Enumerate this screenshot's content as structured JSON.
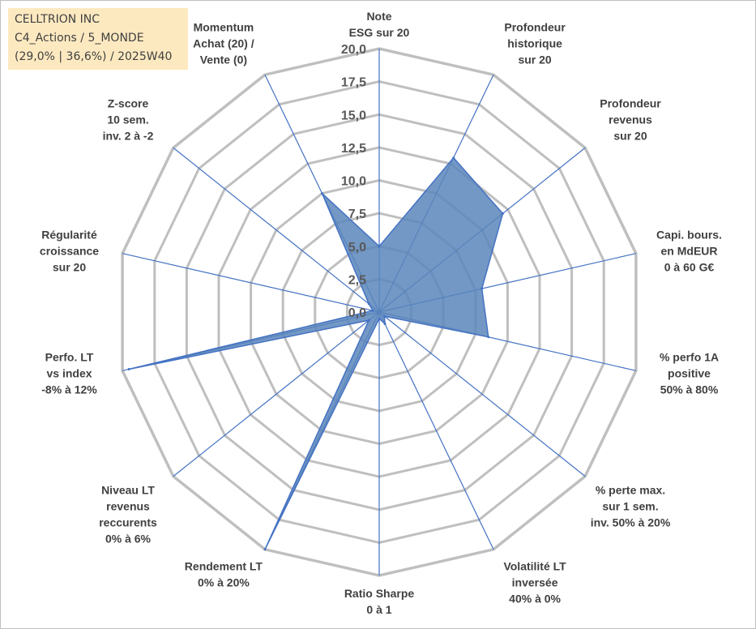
{
  "info_box": {
    "line1": "CELLTRION INC",
    "line2": "C4_Actions / 5_MONDE",
    "line3": "(29,0% | 36,6%) / 2025W40"
  },
  "colors": {
    "fill": "#5b86bb",
    "axis": "#4472c4",
    "grid": "#bfbfbf",
    "label": "#404040"
  },
  "chart_data": {
    "type": "radar",
    "title": "",
    "rlim": [
      0,
      20
    ],
    "ticks": [
      "0,0",
      "2,5",
      "5,0",
      "7,5",
      "10,0",
      "12,5",
      "15,0",
      "17,5",
      "20,0"
    ],
    "axes": [
      {
        "label": [
          "Note",
          "ESG sur 20"
        ],
        "value": 5.0
      },
      {
        "label": [
          "Profondeur",
          "historique",
          "sur 20"
        ],
        "value": 13.0
      },
      {
        "label": [
          "Profondeur",
          "revenus",
          "sur 20"
        ],
        "value": 12.0
      },
      {
        "label": [
          "Capi. bours.",
          "en MdEUR",
          "0 à 60 G€"
        ],
        "value": 8.0
      },
      {
        "label": [
          "% perfo 1A",
          "positive",
          "50% à 80%"
        ],
        "value": 8.5
      },
      {
        "label": [
          "% perte max.",
          "sur 1 sem.",
          "inv. 50% à 20%"
        ],
        "value": 0.5
      },
      {
        "label": [
          "Volatilité LT",
          "inversée",
          "40% à 0%"
        ],
        "value": 1.0
      },
      {
        "label": [
          "Ratio Sharpe",
          "0 à 1"
        ],
        "value": 0.5
      },
      {
        "label": [
          "Rendement LT",
          "0% à 20%"
        ],
        "value": 20.0
      },
      {
        "label": [
          "Niveau LT",
          "revenus",
          "reccurents",
          "0% à 6%"
        ],
        "value": 1.0
      },
      {
        "label": [
          "Perfo. LT",
          "vs index",
          "-8% à 12%"
        ],
        "value": 19.5
      },
      {
        "label": [
          "Régularité",
          "croissance",
          "sur 20"
        ],
        "value": 0.5
      },
      {
        "label": [
          "Z-score",
          "10 sem.",
          "inv. 2 à -2"
        ],
        "value": 1.0
      },
      {
        "label": [
          "Momentum",
          "Achat (20) /",
          "Vente (0)"
        ],
        "value": 10.0
      }
    ],
    "series": [
      {
        "values": [
          5.0,
          13.0,
          12.0,
          8.0,
          8.5,
          0.5,
          1.0,
          0.5,
          20.0,
          1.0,
          19.5,
          0.5,
          1.0,
          10.0
        ]
      }
    ],
    "grid": true,
    "legend": "none"
  }
}
